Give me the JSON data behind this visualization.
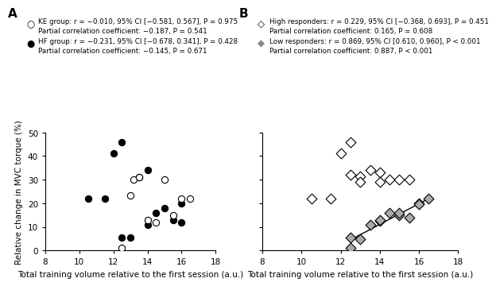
{
  "panel_A_KE_x": [
    12.5,
    13.0,
    13.2,
    13.5,
    14.0,
    14.5,
    15.0,
    15.5,
    16.0,
    16.5
  ],
  "panel_A_KE_y": [
    1.0,
    23.5,
    30.0,
    31.0,
    13.0,
    12.0,
    30.0,
    15.0,
    22.0,
    22.0
  ],
  "panel_A_HF_x": [
    10.5,
    11.5,
    12.0,
    12.5,
    12.5,
    13.0,
    13.5,
    14.0,
    14.0,
    14.5,
    15.0,
    15.5,
    16.0,
    16.0
  ],
  "panel_A_HF_y": [
    22.0,
    22.0,
    41.0,
    46.0,
    5.5,
    5.5,
    31.0,
    34.0,
    11.0,
    16.0,
    18.0,
    13.0,
    20.0,
    12.0
  ],
  "panel_B_High_x": [
    10.5,
    11.5,
    12.0,
    12.5,
    12.5,
    13.0,
    13.0,
    13.5,
    14.0,
    14.0,
    14.5,
    15.0,
    15.5
  ],
  "panel_B_High_y": [
    22.0,
    22.0,
    41.0,
    46.0,
    32.0,
    31.5,
    29.0,
    34.0,
    33.0,
    29.0,
    30.0,
    30.0,
    30.0
  ],
  "panel_B_Low_x": [
    12.5,
    12.5,
    13.0,
    13.5,
    14.0,
    14.0,
    14.5,
    15.0,
    15.0,
    15.5,
    16.0,
    16.0,
    16.5
  ],
  "panel_B_Low_y": [
    1.0,
    5.5,
    5.0,
    11.0,
    12.5,
    13.0,
    16.0,
    15.0,
    16.0,
    14.0,
    20.0,
    19.5,
    22.0
  ],
  "xlabel": "Total training volume relative to the first session (a.u.)",
  "ylabel": "Relative change in MVC torque (%)",
  "xlim": [
    8,
    18
  ],
  "ylim": [
    0,
    50
  ],
  "xticks": [
    8,
    10,
    12,
    14,
    16,
    18
  ],
  "yticks": [
    0,
    10,
    20,
    30,
    40,
    50
  ],
  "legend_A_line1_KE": "KE group: r = −0.010, 95% CI [−0.581, 0.567], P = 0.975",
  "legend_A_line2_KE": "Partial correlation coefficient: −0.187, P = 0.541",
  "legend_A_line1_HF": "HF group: r = −0.231, 95% CI [−0.678, 0.341], P = 0.428",
  "legend_A_line2_HF": "Partial correlation coefficient: −0.145, P = 0.671",
  "legend_B_line1_High": "High responders: r = 0.229, 95% CI [−0.368, 0.693], P = 0.451",
  "legend_B_line2_High": "Partial correlation coefficient: 0.165, P = 0.608",
  "legend_B_line1_Low": "Low responders: r = 0.869, 95% CI [0.610, 0.960], P < 0.001",
  "legend_B_line2_Low": "Partial correlation coefficient: 0.887, P < 0.001",
  "color_KE_face": "#ffffff",
  "color_KE_edge": "#000000",
  "color_HF_face": "#000000",
  "color_HF_edge": "#000000",
  "color_High_face": "#ffffff",
  "color_High_edge": "#000000",
  "color_Low_face": "#aaaaaa",
  "color_Low_edge": "#000000",
  "panel_label_A": "A",
  "panel_label_B": "B",
  "label_fontsize": 7.5,
  "tick_fontsize": 7.5,
  "legend_fontsize": 6.3,
  "panel_label_fontsize": 11,
  "marker_size": 35,
  "diamond_size": 42,
  "linewidth": 0.8
}
